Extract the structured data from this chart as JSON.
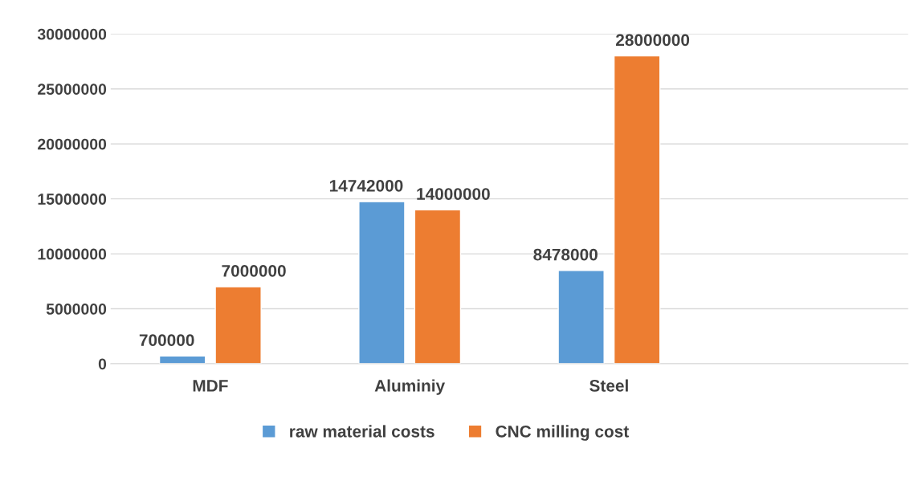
{
  "chart_data": {
    "type": "bar",
    "categories": [
      "MDF",
      "Aluminiy",
      "Steel",
      null
    ],
    "series": [
      {
        "name": "raw material costs",
        "color": "#5b9bd5",
        "values": [
          700000,
          14742000,
          8478000,
          null
        ]
      },
      {
        "name": "CNC milling cost",
        "color": "#ed7d31",
        "values": [
          7000000,
          14000000,
          28000000,
          null
        ]
      }
    ],
    "ylim": [
      0,
      30000000
    ],
    "yticks": [
      0,
      5000000,
      10000000,
      15000000,
      20000000,
      25000000,
      30000000
    ],
    "grid": "y",
    "legend": "bottom",
    "data_labels": true
  }
}
